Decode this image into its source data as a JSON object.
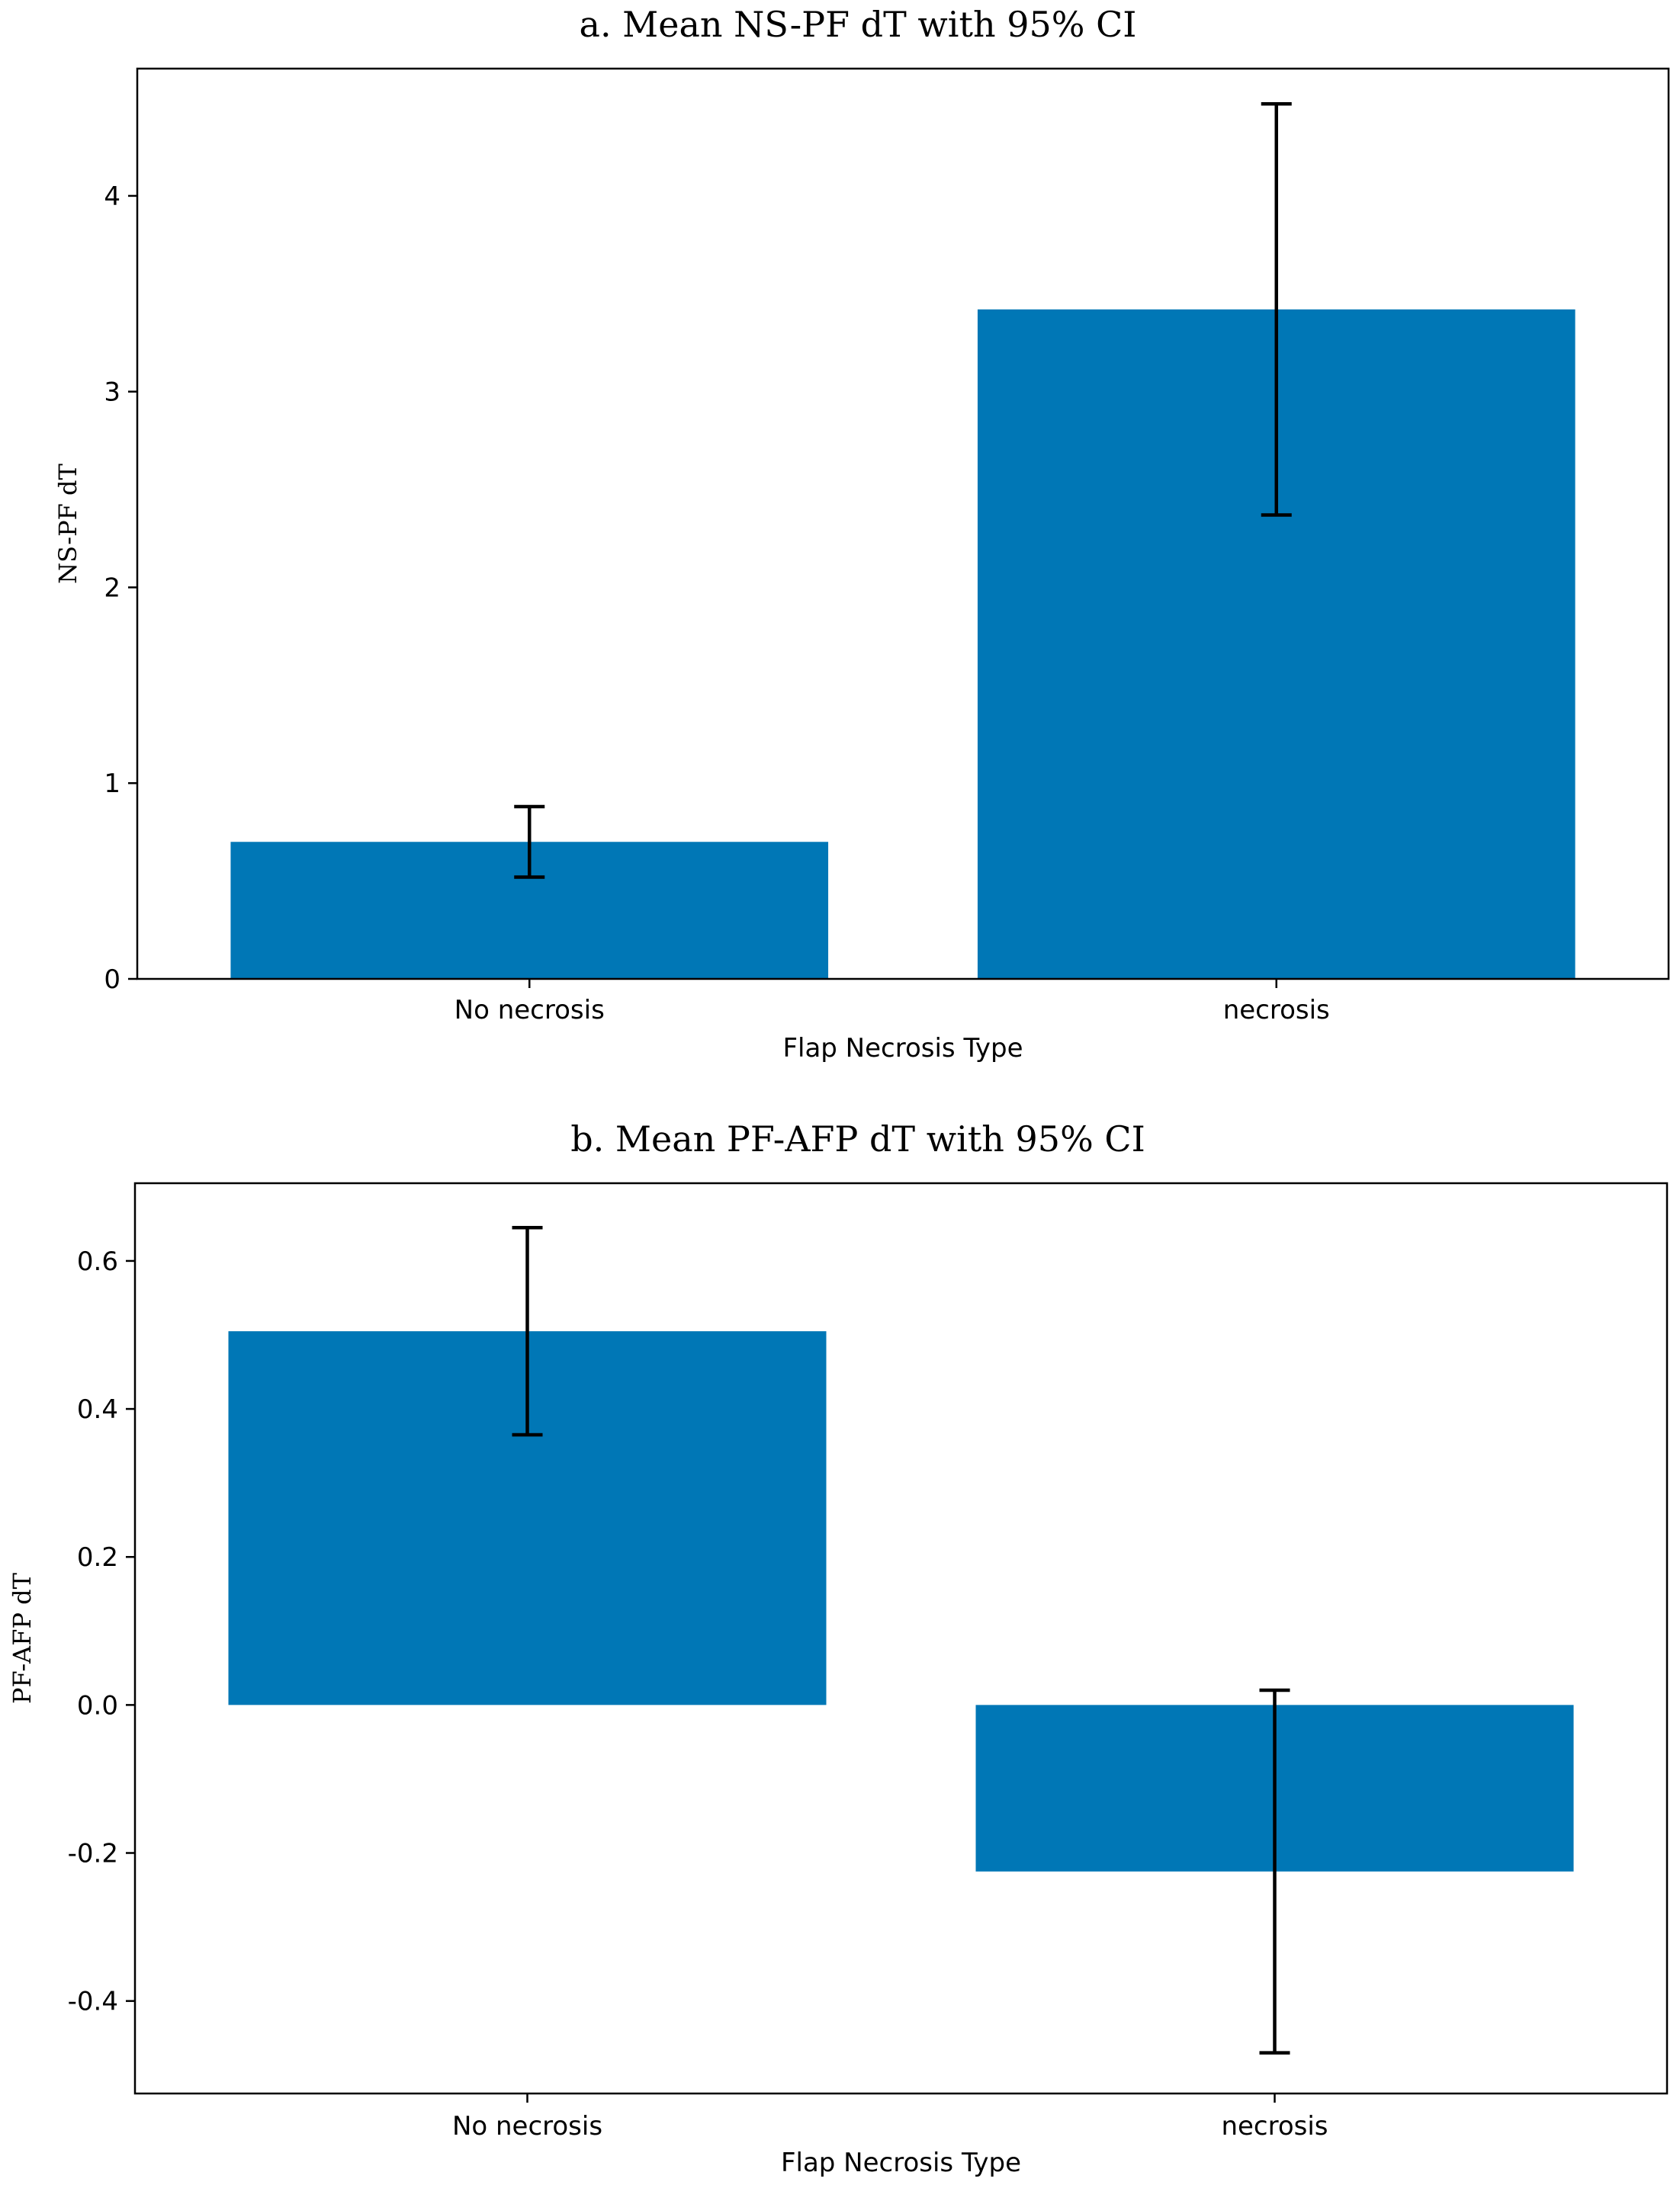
{
  "chart_data": [
    {
      "type": "bar",
      "title": "a. Mean NS-PF dT with 95% CI",
      "xlabel": "Flap Necrosis Type",
      "ylabel": "NS-PF dT",
      "categories": [
        "No necrosis",
        "necrosis"
      ],
      "values": [
        0.7,
        3.42
      ],
      "ci_lower": [
        0.52,
        2.37
      ],
      "ci_upper": [
        0.88,
        4.47
      ],
      "ylim": [
        0,
        4.65
      ],
      "yticks": [
        0,
        1,
        2,
        3,
        4
      ],
      "ytick_labels": [
        "0",
        "1",
        "2",
        "3",
        "4"
      ],
      "bar_color": "#0077b6"
    },
    {
      "type": "bar",
      "title": "b. Mean PF-AFP dT with 95% CI",
      "xlabel": "Flap Necrosis Type",
      "ylabel": "PF-AFP dT",
      "categories": [
        "No necrosis",
        "necrosis"
      ],
      "values": [
        0.505,
        -0.225
      ],
      "ci_lower": [
        0.365,
        -0.47
      ],
      "ci_upper": [
        0.645,
        0.02
      ],
      "ylim": [
        -0.525,
        0.705
      ],
      "yticks": [
        -0.4,
        -0.2,
        0.0,
        0.2,
        0.4,
        0.6
      ],
      "ytick_labels": [
        "-0.4",
        "-0.2",
        "0.0",
        "0.2",
        "0.4",
        "0.6"
      ],
      "bar_color": "#0077b6"
    }
  ]
}
